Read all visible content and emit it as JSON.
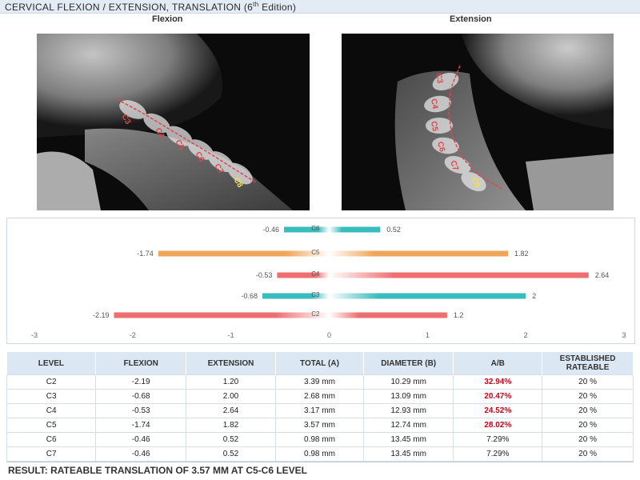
{
  "header": {
    "title": "CERVICAL FLEXION / EXTENSION, TRANSLATION (6",
    "title_sup": "th",
    "title_tail": " Edition)"
  },
  "captions": {
    "flexion": "Flexion",
    "extension": "Extension"
  },
  "xray_labels": {
    "flexion": [
      "C3",
      "C4",
      "C5",
      "C6",
      "C7",
      "C8"
    ],
    "extension": [
      "C3",
      "C4",
      "C5",
      "C6",
      "C7",
      "C8"
    ]
  },
  "chart_data": {
    "type": "bar",
    "orientation": "horizontal",
    "categories": [
      "C2",
      "C3",
      "C4",
      "C5",
      "C6"
    ],
    "series": [
      {
        "values": [
          -2.19,
          -0.68,
          -0.53,
          -1.74,
          -0.46
        ]
      },
      {
        "values": [
          1.2,
          2,
          2.64,
          1.82,
          0.52
        ]
      }
    ],
    "xlim": [
      -3,
      3
    ],
    "xticks": [
      "-3",
      "-2",
      "-1",
      "0",
      "1",
      "2",
      "3"
    ],
    "grid": false,
    "bar_colors": {
      "C2": "#ee6f72",
      "C3": "#39bcbd",
      "C4": "#ee6f72",
      "C5": "#f0a65a",
      "C6": "#39bcbd"
    }
  },
  "table": {
    "headers": [
      "LEVEL",
      "FLEXION",
      "EXTENSION",
      "TOTAL (A)",
      "DIAMETER (B)",
      "A/B",
      "ESTABLISHED RATEABLE"
    ],
    "rows": [
      [
        "C2",
        "-2.19",
        "1.20",
        "3.39 mm",
        "10.29 mm",
        "32.94%",
        "20 %"
      ],
      [
        "C3",
        "-0.68",
        "2.00",
        "2.68 mm",
        "13.09 mm",
        "20.47%",
        "20 %"
      ],
      [
        "C4",
        "-0.53",
        "2.64",
        "3.17 mm",
        "12.93 mm",
        "24.52%",
        "20 %"
      ],
      [
        "C5",
        "-1.74",
        "1.82",
        "3.57 mm",
        "12.74 mm",
        "28.02%",
        "20 %"
      ],
      [
        "C6",
        "-0.46",
        "0.52",
        "0.98 mm",
        "13.45 mm",
        "7.29%",
        "20 %"
      ],
      [
        "C7",
        "-0.46",
        "0.52",
        "0.98 mm",
        "13.45 mm",
        "7.29%",
        "20 %"
      ]
    ],
    "highlight_rows": [
      0,
      1,
      2,
      3
    ]
  },
  "result": "RESULT: RATEABLE TRANSLATION OF 3.57 MM AT C5-C6 LEVEL"
}
